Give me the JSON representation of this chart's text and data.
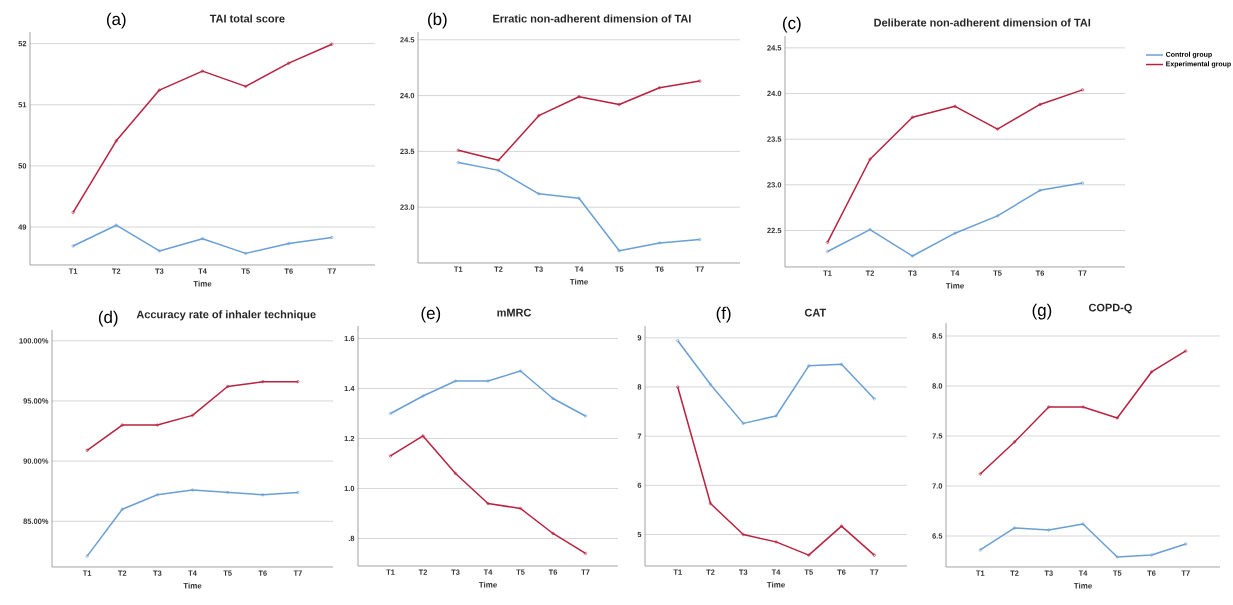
{
  "chart_data": [
    {
      "type": "line",
      "title": "TAI total score",
      "annotations": [
        "(a)"
      ],
      "xlabel": "Time",
      "categories": [
        "T1",
        "T2",
        "T3",
        "T4",
        "T5",
        "T6",
        "T7"
      ],
      "series": [
        {
          "color": "#6a9fd4",
          "values": [
            48.69,
            49.03,
            48.61,
            48.81,
            48.57,
            48.73,
            48.83
          ]
        },
        {
          "color": "#b8213f",
          "values": [
            49.24,
            50.41,
            51.24,
            51.55,
            51.3,
            51.68,
            51.99
          ]
        }
      ],
      "ylim": [
        48.38,
        52.19
      ],
      "yticks": [
        49,
        50,
        51,
        52
      ],
      "grid": "y",
      "marker": "circle",
      "line_style": "solid"
    },
    {
      "type": "line",
      "title": "Erratic non-adherent dimension of TAI",
      "annotations": [
        "(b)"
      ],
      "xlabel": "Time",
      "categories": [
        "T1",
        "T2",
        "T3",
        "T4",
        "T5",
        "T6",
        "T7"
      ],
      "series": [
        {
          "color": "#6a9fd4",
          "values": [
            23.4,
            23.33,
            23.12,
            23.08,
            22.61,
            22.68,
            22.71
          ]
        },
        {
          "color": "#b8213f",
          "values": [
            23.51,
            23.42,
            23.82,
            23.99,
            23.92,
            24.07,
            24.13
          ]
        }
      ],
      "ylim": [
        22.5,
        24.57
      ],
      "yticks": [
        {
          "value": 23,
          "label": "23.0"
        },
        23.5,
        {
          "value": 24,
          "label": "24.0"
        },
        24.5
      ],
      "grid": "y",
      "marker": "circle",
      "line_style": "solid"
    },
    {
      "type": "line",
      "title": "Deliberate non-adherent dimension of TAI",
      "annotations": [
        "(c)"
      ],
      "xlabel": "Time",
      "categories": [
        "T1",
        "T2",
        "T3",
        "T4",
        "T5",
        "T6",
        "T7"
      ],
      "series": [
        {
          "name": "Control group",
          "color": "#6a9fd4",
          "values": [
            22.27,
            22.51,
            22.22,
            22.47,
            22.66,
            22.94,
            23.02
          ]
        },
        {
          "name": "Experimental group",
          "color": "#b8213f",
          "values": [
            22.37,
            23.28,
            23.74,
            23.86,
            23.61,
            23.88,
            24.04
          ]
        }
      ],
      "ylim": [
        22.1,
        24.63
      ],
      "yticks": [
        22.5,
        {
          "value": 23,
          "label": "23.0"
        },
        23.5,
        {
          "value": 24,
          "label": "24.0"
        },
        24.5
      ],
      "grid": "y",
      "marker": "circle",
      "line_style": "solid",
      "legend": "right"
    },
    {
      "type": "line",
      "title": "Accuracy rate of inhaler technique",
      "annotations": [
        "(d)"
      ],
      "xlabel": "Time",
      "categories": [
        "T1",
        "T2",
        "T3",
        "T4",
        "T5",
        "T6",
        "T7"
      ],
      "series": [
        {
          "color": "#6a9fd4",
          "values": [
            82.1,
            86.0,
            87.2,
            87.6,
            87.4,
            87.2,
            87.4
          ]
        },
        {
          "color": "#b8213f",
          "values": [
            90.9,
            93.0,
            93.0,
            93.8,
            96.2,
            96.6,
            96.6
          ]
        }
      ],
      "ylim": [
        81.2,
        100.9
      ],
      "yticks": [
        {
          "value": 85,
          "label": "85.00%"
        },
        {
          "value": 90,
          "label": "90.00%"
        },
        {
          "value": 95,
          "label": "95.00%"
        },
        {
          "value": 100,
          "label": "100.00%"
        }
      ],
      "grid": "y",
      "marker": "circle",
      "line_style": "solid"
    },
    {
      "type": "line",
      "title": "mMRC",
      "annotations": [
        "(e)"
      ],
      "xlabel": "Time",
      "categories": [
        "T1",
        "T2",
        "T3",
        "T4",
        "T5",
        "T6",
        "T7"
      ],
      "series": [
        {
          "color": "#6a9fd4",
          "values": [
            1.3,
            1.37,
            1.43,
            1.43,
            1.47,
            1.36,
            1.29
          ]
        },
        {
          "color": "#b8213f",
          "values": [
            1.13,
            1.21,
            1.06,
            0.94,
            0.92,
            0.82,
            0.74
          ]
        }
      ],
      "ylim": [
        0.69,
        1.65
      ],
      "yticks": [
        {
          "value": 0.8,
          "label": ".8"
        },
        {
          "value": 1,
          "label": "1.0"
        },
        1.2,
        1.4,
        1.6
      ],
      "grid": "y",
      "marker": "circle",
      "line_style": "solid"
    },
    {
      "type": "line",
      "title": "CAT",
      "annotations": [
        "(f)"
      ],
      "xlabel": "Time",
      "categories": [
        "T1",
        "T2",
        "T3",
        "T4",
        "T5",
        "T6",
        "T7"
      ],
      "series": [
        {
          "color": "#6a9fd4",
          "values": [
            8.94,
            8.05,
            7.26,
            7.41,
            8.43,
            8.46,
            7.76
          ]
        },
        {
          "color": "#b8213f",
          "values": [
            8.0,
            5.63,
            5.0,
            4.85,
            4.58,
            5.17,
            4.58
          ]
        }
      ],
      "ylim": [
        4.36,
        9.24
      ],
      "yticks": [
        5,
        6,
        7,
        8,
        9
      ],
      "grid": "y",
      "marker": "circle",
      "line_style": "solid"
    },
    {
      "type": "line",
      "title": "COPD-Q",
      "annotations": [
        "(g)"
      ],
      "xlabel": "Time",
      "categories": [
        "T1",
        "T2",
        "T3",
        "T4",
        "T5",
        "T6",
        "T7"
      ],
      "series": [
        {
          "color": "#6a9fd4",
          "values": [
            6.36,
            6.58,
            6.56,
            6.62,
            6.29,
            6.31,
            6.42
          ]
        },
        {
          "color": "#b8213f",
          "values": [
            7.12,
            7.44,
            7.79,
            7.79,
            7.68,
            8.14,
            8.35
          ]
        }
      ],
      "ylim": [
        6.19,
        8.63
      ],
      "yticks": [
        6.5,
        {
          "value": 7,
          "label": "7.0"
        },
        7.5,
        {
          "value": 8,
          "label": "8.0"
        },
        8.5
      ],
      "grid": "y",
      "marker": "circle",
      "line_style": "solid"
    }
  ]
}
